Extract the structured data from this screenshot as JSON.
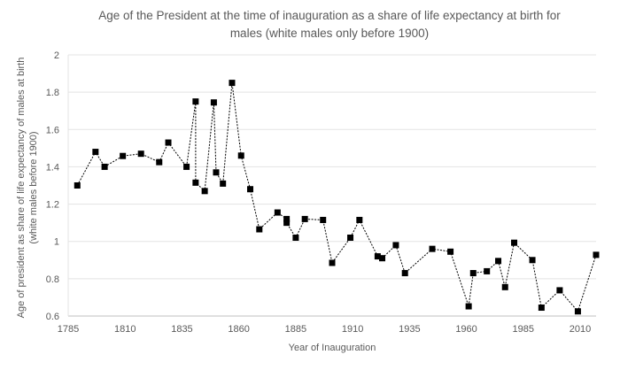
{
  "chart_data": {
    "type": "line",
    "title": [
      "Age of the President at the time of inauguration as a share of life expectancy at birth for",
      "males (white males only before 1900)"
    ],
    "xlabel": "Year of Inauguration",
    "ylabel": [
      "Age of president  as share of life expectancy of males at birth",
      "(white males before 1900)"
    ],
    "xlim": [
      1785,
      2017
    ],
    "ylim": [
      0.6,
      2
    ],
    "xticks": [
      1785,
      1810,
      1835,
      1860,
      1885,
      1910,
      1935,
      1960,
      1985,
      2010
    ],
    "yticks": [
      "0.6",
      "0.8",
      "1",
      "1.2",
      "1.4",
      "1.6",
      "1.8",
      "2"
    ],
    "grid": "horizontal",
    "line_style": "dashed",
    "marker": "square",
    "color": "#000000",
    "points": [
      [
        1789,
        1.3
      ],
      [
        1797,
        1.48
      ],
      [
        1801,
        1.4
      ],
      [
        1809,
        1.458
      ],
      [
        1817,
        1.47
      ],
      [
        1825,
        1.425
      ],
      [
        1829,
        1.53
      ],
      [
        1837,
        1.4
      ],
      [
        1841,
        1.75
      ],
      [
        1841,
        1.315
      ],
      [
        1845,
        1.27
      ],
      [
        1849,
        1.745
      ],
      [
        1850,
        1.37
      ],
      [
        1853,
        1.31
      ],
      [
        1857,
        1.85
      ],
      [
        1861,
        1.46
      ],
      [
        1865,
        1.28
      ],
      [
        1869,
        1.065
      ],
      [
        1877,
        1.155
      ],
      [
        1881,
        1.12
      ],
      [
        1881,
        1.1
      ],
      [
        1885,
        1.02
      ],
      [
        1889,
        1.12
      ],
      [
        1897,
        1.115
      ],
      [
        1901,
        0.885
      ],
      [
        1909,
        1.02
      ],
      [
        1913,
        1.115
      ],
      [
        1921,
        0.92
      ],
      [
        1923,
        0.91
      ],
      [
        1929,
        0.98
      ],
      [
        1933,
        0.83
      ],
      [
        1945,
        0.96
      ],
      [
        1953,
        0.945
      ],
      [
        1961,
        0.652
      ],
      [
        1963,
        0.83
      ],
      [
        1969,
        0.84
      ],
      [
        1974,
        0.895
      ],
      [
        1977,
        0.755
      ],
      [
        1981,
        0.993
      ],
      [
        1989,
        0.9
      ],
      [
        1993,
        0.645
      ],
      [
        2001,
        0.738
      ],
      [
        2009,
        0.625
      ],
      [
        2017,
        0.928
      ]
    ]
  }
}
